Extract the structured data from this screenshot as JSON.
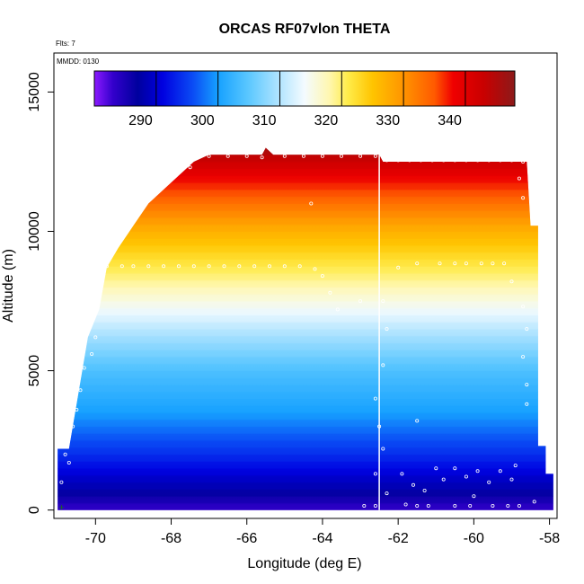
{
  "chart_data": {
    "type": "heatmap",
    "title": "ORCAS RF07vlon THETA",
    "xlabel": "Longitude (deg E)",
    "ylabel": "Altitude (m)",
    "annotations": {
      "flts": "Flts: 7",
      "mmdd": "MMDD: 0130"
    },
    "xlim": [
      -71.1,
      -57.8
    ],
    "ylim": [
      -300,
      16400
    ],
    "x_ticks": [
      -70,
      -68,
      -66,
      -64,
      -62,
      -60,
      -58
    ],
    "y_ticks": [
      0,
      5000,
      10000,
      15000
    ],
    "colorbar": {
      "range": [
        280,
        348
      ],
      "ticks": [
        290,
        300,
        310,
        320,
        330,
        340
      ],
      "stops": [
        {
          "v": 280,
          "c": "#8c1aff"
        },
        {
          "v": 283,
          "c": "#3300cc"
        },
        {
          "v": 287,
          "c": "#00009e"
        },
        {
          "v": 291,
          "c": "#0000e0"
        },
        {
          "v": 296,
          "c": "#0b4df5"
        },
        {
          "v": 300,
          "c": "#16a1ff"
        },
        {
          "v": 305,
          "c": "#5cc8ff"
        },
        {
          "v": 310,
          "c": "#b3e5ff"
        },
        {
          "v": 314,
          "c": "#f4fbff"
        },
        {
          "v": 318,
          "c": "#fff7b0"
        },
        {
          "v": 321,
          "c": "#ffec4a"
        },
        {
          "v": 325,
          "c": "#ffc400"
        },
        {
          "v": 330,
          "c": "#ff9400"
        },
        {
          "v": 335,
          "c": "#ff5a00"
        },
        {
          "v": 338,
          "c": "#f00000"
        },
        {
          "v": 343,
          "c": "#c90000"
        },
        {
          "v": 348,
          "c": "#8c1a1a"
        }
      ]
    },
    "theta_profile": [
      {
        "alt": 0,
        "theta": 283
      },
      {
        "alt": 800,
        "theta": 288
      },
      {
        "alt": 2000,
        "theta": 294
      },
      {
        "alt": 3500,
        "theta": 300
      },
      {
        "alt": 5000,
        "theta": 304
      },
      {
        "alt": 6200,
        "theta": 309
      },
      {
        "alt": 7600,
        "theta": 316
      },
      {
        "alt": 8700,
        "theta": 321
      },
      {
        "alt": 10000,
        "theta": 327
      },
      {
        "alt": 11000,
        "theta": 333
      },
      {
        "alt": 12000,
        "theta": 339
      },
      {
        "alt": 13000,
        "theta": 346
      }
    ],
    "coverage_top": [
      {
        "lon": -71.0,
        "alt": 2200
      },
      {
        "lon": -70.7,
        "alt": 2200
      },
      {
        "lon": -70.5,
        "alt": 3800
      },
      {
        "lon": -70.2,
        "alt": 6200
      },
      {
        "lon": -69.9,
        "alt": 7200
      },
      {
        "lon": -69.7,
        "alt": 8700
      },
      {
        "lon": -69.4,
        "alt": 9400
      },
      {
        "lon": -69.0,
        "alt": 10200
      },
      {
        "lon": -68.6,
        "alt": 11000
      },
      {
        "lon": -68.2,
        "alt": 11500
      },
      {
        "lon": -67.8,
        "alt": 12000
      },
      {
        "lon": -67.4,
        "alt": 12500
      },
      {
        "lon": -67.0,
        "alt": 12750
      },
      {
        "lon": -65.6,
        "alt": 12750
      },
      {
        "lon": -65.5,
        "alt": 13000
      },
      {
        "lon": -65.3,
        "alt": 12750
      },
      {
        "lon": -62.5,
        "alt": 12750
      },
      {
        "lon": -62.4,
        "alt": 12500
      },
      {
        "lon": -59.5,
        "alt": 12500
      },
      {
        "lon": -58.6,
        "alt": 12500
      },
      {
        "lon": -58.5,
        "alt": 10200
      },
      {
        "lon": -58.3,
        "alt": 10200
      },
      {
        "lon": -58.3,
        "alt": 2300
      },
      {
        "lon": -58.1,
        "alt": 2300
      },
      {
        "lon": -58.1,
        "alt": 1300
      },
      {
        "lon": -57.9,
        "alt": 1300
      },
      {
        "lon": -57.9,
        "alt": 0
      }
    ],
    "gap_longitude": -62.5,
    "flight_points": [
      {
        "lon": -67.0,
        "alt": 12700
      },
      {
        "lon": -66.5,
        "alt": 12700
      },
      {
        "lon": -66.0,
        "alt": 12700
      },
      {
        "lon": -65.6,
        "alt": 12650
      },
      {
        "lon": -65.0,
        "alt": 12700
      },
      {
        "lon": -64.5,
        "alt": 12700
      },
      {
        "lon": -64.0,
        "alt": 12700
      },
      {
        "lon": -63.5,
        "alt": 12700
      },
      {
        "lon": -63.0,
        "alt": 12700
      },
      {
        "lon": -62.6,
        "alt": 12700
      },
      {
        "lon": -67.5,
        "alt": 12300
      },
      {
        "lon": -69.7,
        "alt": 8750
      },
      {
        "lon": -69.3,
        "alt": 8750
      },
      {
        "lon": -69.0,
        "alt": 8750
      },
      {
        "lon": -68.6,
        "alt": 8750
      },
      {
        "lon": -68.2,
        "alt": 8750
      },
      {
        "lon": -67.8,
        "alt": 8750
      },
      {
        "lon": -67.4,
        "alt": 8750
      },
      {
        "lon": -67.0,
        "alt": 8750
      },
      {
        "lon": -66.6,
        "alt": 8750
      },
      {
        "lon": -66.2,
        "alt": 8750
      },
      {
        "lon": -65.8,
        "alt": 8750
      },
      {
        "lon": -65.4,
        "alt": 8750
      },
      {
        "lon": -65.0,
        "alt": 8750
      },
      {
        "lon": -64.6,
        "alt": 8750
      },
      {
        "lon": -64.2,
        "alt": 8650
      },
      {
        "lon": -64.0,
        "alt": 8400
      },
      {
        "lon": -64.3,
        "alt": 11000
      },
      {
        "lon": -62.3,
        "alt": 12550
      },
      {
        "lon": -62.0,
        "alt": 12550
      },
      {
        "lon": -61.7,
        "alt": 12550
      },
      {
        "lon": -61.4,
        "alt": 12550
      },
      {
        "lon": -61.1,
        "alt": 12550
      },
      {
        "lon": -60.8,
        "alt": 12550
      },
      {
        "lon": -60.5,
        "alt": 12550
      },
      {
        "lon": -60.2,
        "alt": 12550
      },
      {
        "lon": -59.9,
        "alt": 12550
      },
      {
        "lon": -59.6,
        "alt": 12550
      },
      {
        "lon": -59.3,
        "alt": 12550
      },
      {
        "lon": -59.0,
        "alt": 12550
      },
      {
        "lon": -58.7,
        "alt": 12500
      },
      {
        "lon": -58.8,
        "alt": 11900
      },
      {
        "lon": -58.7,
        "alt": 11200
      },
      {
        "lon": -59.8,
        "alt": 8850
      },
      {
        "lon": -59.5,
        "alt": 8850
      },
      {
        "lon": -59.2,
        "alt": 8850
      },
      {
        "lon": -60.2,
        "alt": 8850
      },
      {
        "lon": -60.5,
        "alt": 8850
      },
      {
        "lon": -60.9,
        "alt": 8850
      },
      {
        "lon": -61.5,
        "alt": 8850
      },
      {
        "lon": -62.0,
        "alt": 8700
      },
      {
        "lon": -59.0,
        "alt": 8200
      },
      {
        "lon": -62.4,
        "alt": 7500
      },
      {
        "lon": -62.3,
        "alt": 6500
      },
      {
        "lon": -62.4,
        "alt": 5200
      },
      {
        "lon": -62.6,
        "alt": 4000
      },
      {
        "lon": -62.5,
        "alt": 3000
      },
      {
        "lon": -62.4,
        "alt": 2200
      },
      {
        "lon": -62.6,
        "alt": 1300
      },
      {
        "lon": -62.3,
        "alt": 600
      },
      {
        "lon": -70.6,
        "alt": 3000
      },
      {
        "lon": -70.5,
        "alt": 3600
      },
      {
        "lon": -70.4,
        "alt": 4300
      },
      {
        "lon": -70.3,
        "alt": 5100
      },
      {
        "lon": -70.1,
        "alt": 5600
      },
      {
        "lon": -70.0,
        "alt": 6200
      },
      {
        "lon": -70.8,
        "alt": 2000
      },
      {
        "lon": -70.9,
        "alt": 1000
      },
      {
        "lon": -70.7,
        "alt": 1700
      },
      {
        "lon": -61.0,
        "alt": 1500
      },
      {
        "lon": -60.8,
        "alt": 1100
      },
      {
        "lon": -60.5,
        "alt": 1500
      },
      {
        "lon": -60.2,
        "alt": 1200
      },
      {
        "lon": -59.9,
        "alt": 1400
      },
      {
        "lon": -59.6,
        "alt": 1000
      },
      {
        "lon": -59.3,
        "alt": 1400
      },
      {
        "lon": -59.0,
        "alt": 1100
      },
      {
        "lon": -61.6,
        "alt": 900
      },
      {
        "lon": -61.9,
        "alt": 1300
      },
      {
        "lon": -61.3,
        "alt": 700
      },
      {
        "lon": -60.0,
        "alt": 500
      },
      {
        "lon": -61.8,
        "alt": 200
      },
      {
        "lon": -61.5,
        "alt": 150
      },
      {
        "lon": -61.2,
        "alt": 150
      },
      {
        "lon": -60.5,
        "alt": 150
      },
      {
        "lon": -60.1,
        "alt": 150
      },
      {
        "lon": -59.5,
        "alt": 150
      },
      {
        "lon": -59.1,
        "alt": 150
      },
      {
        "lon": -58.8,
        "alt": 150
      },
      {
        "lon": -62.6,
        "alt": 150
      },
      {
        "lon": -62.9,
        "alt": 150
      },
      {
        "lon": -58.6,
        "alt": 3800
      },
      {
        "lon": -58.6,
        "alt": 4500
      },
      {
        "lon": -58.7,
        "alt": 5500
      },
      {
        "lon": -58.6,
        "alt": 6500
      },
      {
        "lon": -58.7,
        "alt": 7300
      },
      {
        "lon": -63.0,
        "alt": 7500
      },
      {
        "lon": -63.8,
        "alt": 7800
      },
      {
        "lon": -61.5,
        "alt": 3200
      },
      {
        "lon": -63.6,
        "alt": 7200
      },
      {
        "lon": -58.9,
        "alt": 1600
      },
      {
        "lon": -58.4,
        "alt": 300
      }
    ],
    "origin_marker": {
      "lon": -70.9,
      "alt": 100
    }
  }
}
